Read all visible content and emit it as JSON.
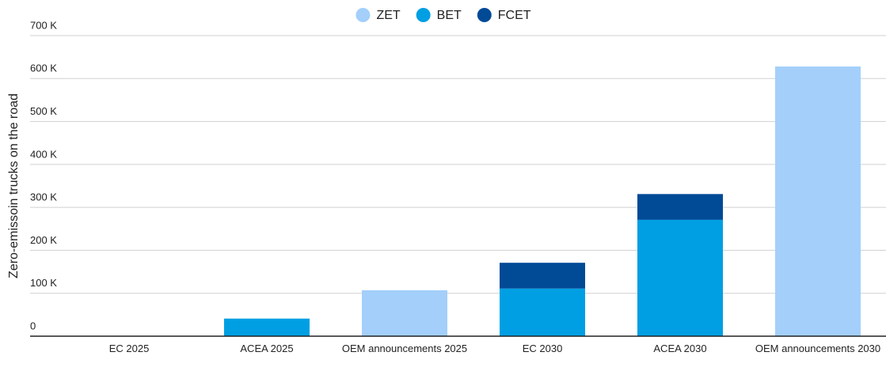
{
  "chart_data": {
    "type": "bar",
    "stacked": true,
    "y_label": "Zero-emissoin trucks on the road",
    "categories": [
      "EC 2025",
      "ACEA 2025",
      "OEM announcements 2025",
      "EC 2030",
      "ACEA 2030",
      "OEM announcements 2030"
    ],
    "series": [
      {
        "name": "ZET",
        "color": "#a3cffa",
        "values": [
          null,
          null,
          107000,
          null,
          null,
          628000
        ]
      },
      {
        "name": "BET",
        "color": "#009fe3",
        "values": [
          null,
          41000,
          null,
          111000,
          271000,
          null
        ]
      },
      {
        "name": "FCET",
        "color": "#004a96",
        "values": [
          null,
          null,
          null,
          60000,
          60000,
          null
        ]
      }
    ],
    "ylim": [
      0,
      700000
    ],
    "yticks": [
      0,
      {
        "value": 100000,
        "label": "100 K"
      },
      {
        "value": 200000,
        "label": "200 K"
      },
      {
        "value": 300000,
        "label": "300 K"
      },
      {
        "value": 400000,
        "label": "400 K"
      },
      {
        "value": 500000,
        "label": "500 K"
      },
      {
        "value": 600000,
        "label": "600 K"
      },
      {
        "value": 700000,
        "label": "700 K"
      }
    ],
    "grid": true,
    "legend": "top"
  }
}
